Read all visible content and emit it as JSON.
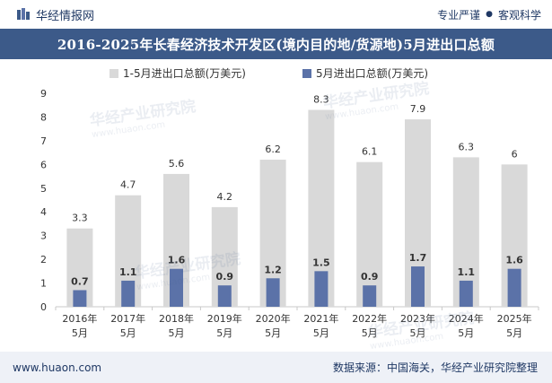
{
  "header": {
    "brand": "华经情报网",
    "tag1": "专业严谨",
    "tag2": "客观科学",
    "separator": "●",
    "title": "2016-2025年长春经济技术开发区(境内目的地/货源地)5月进出口总额"
  },
  "footer": {
    "url": "www.huaon.com",
    "source": "数据来源：中国海关，华经产业研究院整理"
  },
  "watermark": {
    "text": "华经产业研究院",
    "sub": "www.huaon.com"
  },
  "colors": {
    "series_cumulative": "#d9d9d9",
    "series_month": "#5b72a8",
    "title_bg": "#3c5a89",
    "footer_bg": "#eef1f7"
  },
  "chart_data": {
    "type": "bar",
    "categories": [
      "2016年\n5月",
      "2017年\n5月",
      "2018年\n5月",
      "2019年\n5月",
      "2020年\n5月",
      "2021年\n5月",
      "2022年\n5月",
      "2023年\n5月",
      "2024年\n5月",
      "2025年\n5月"
    ],
    "series": [
      {
        "name": "1-5月进出口总额(万美元)",
        "values": [
          3.3,
          4.7,
          5.6,
          4.2,
          6.2,
          8.3,
          6.1,
          7.9,
          6.3,
          6
        ]
      },
      {
        "name": "5月进出口总额(万美元)",
        "values": [
          0.7,
          1.1,
          1.6,
          0.9,
          1.2,
          1.5,
          0.9,
          1.7,
          1.1,
          1.6
        ]
      }
    ],
    "ylim": [
      0,
      9
    ],
    "yticks": [
      0,
      1,
      2,
      3,
      4,
      5,
      6,
      7,
      8,
      9
    ],
    "grid": false,
    "legend": "top-center",
    "overlapped": true
  }
}
